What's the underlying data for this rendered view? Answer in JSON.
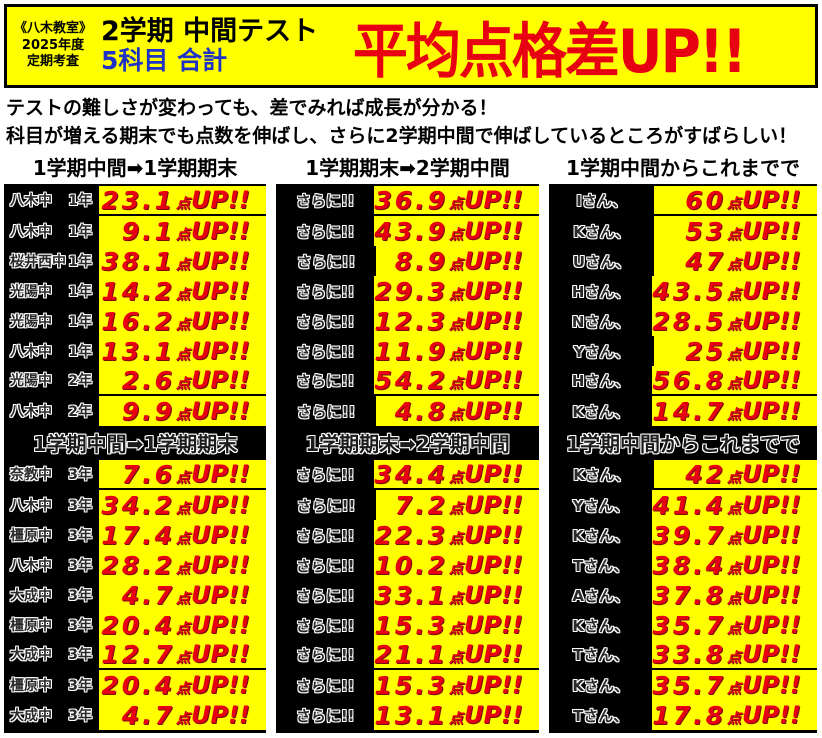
{
  "colors": {
    "background": "#ffffff",
    "highlight_yellow": "#ffff00",
    "accent_red": "#e60012",
    "accent_blue": "#1e32c8",
    "label_bg": "#000000"
  },
  "header": {
    "tag_line1": "《八木教室》",
    "tag_line2": "2025年度",
    "tag_line3": "定期考査",
    "test_name": "2学期 中間テスト",
    "subjects": "5科目 合計",
    "title": "平均点格差UP!!"
  },
  "intro_lines": [
    "テストの難しさが変わっても、差でみれば成長が分かる！",
    "科目が増える期末でも点数を伸ばし、さらに2学期中間で伸ばしているところがすばらしい！"
  ],
  "column_headers": [
    "1学期中間➡1学期期末",
    "1学期期末➡2学期中間",
    "1学期中間からこれまでで"
  ],
  "further_label": "さらに!!",
  "unit": "点",
  "up_suffix": "UP!!",
  "sections": [
    {
      "rows": [
        {
          "school": "八木中",
          "grade": "1年",
          "student": "Iさん、",
          "gains": [
            "23.1",
            "36.9",
            "60"
          ]
        },
        {
          "school": "八木中",
          "grade": "1年",
          "student": "Kさん、",
          "gains": [
            "9.1",
            "43.9",
            "53"
          ]
        },
        {
          "school": "桜井西中",
          "grade": "1年",
          "student": "Uさん、",
          "gains": [
            "38.1",
            "8.9",
            "47"
          ]
        },
        {
          "school": "光陽中",
          "grade": "1年",
          "student": "Hさん、",
          "gains": [
            "14.2",
            "29.3",
            "43.5"
          ]
        },
        {
          "school": "光陽中",
          "grade": "1年",
          "student": "Nさん、",
          "gains": [
            "16.2",
            "12.3",
            "28.5"
          ]
        },
        {
          "school": "八木中",
          "grade": "1年",
          "student": "Yさん、",
          "gains": [
            "13.1",
            "11.9",
            "25"
          ]
        },
        {
          "school": "光陽中",
          "grade": "2年",
          "student": "Hさん、",
          "gains": [
            "2.6",
            "54.2",
            "56.8"
          ]
        },
        {
          "school": "八木中",
          "grade": "2年",
          "student": "Kさん、",
          "gains": [
            "9.9",
            "4.8",
            "14.7"
          ]
        }
      ]
    },
    {
      "rows": [
        {
          "school": "奈教中",
          "grade": "3年",
          "student": "Kさん、",
          "gains": [
            "7.6",
            "34.4",
            "42"
          ]
        },
        {
          "school": "八木中",
          "grade": "3年",
          "student": "Yさん、",
          "gains": [
            "34.2",
            "7.2",
            "41.4"
          ]
        },
        {
          "school": "橿原中",
          "grade": "3年",
          "student": "Kさん、",
          "gains": [
            "17.4",
            "22.3",
            "39.7"
          ]
        },
        {
          "school": "八木中",
          "grade": "3年",
          "student": "Tさん、",
          "gains": [
            "28.2",
            "10.2",
            "38.4"
          ]
        },
        {
          "school": "大成中",
          "grade": "3年",
          "student": "Aさん、",
          "gains": [
            "4.7",
            "33.1",
            "37.8"
          ]
        },
        {
          "school": "橿原中",
          "grade": "3年",
          "student": "Kさん、",
          "gains": [
            "20.4",
            "15.3",
            "35.7"
          ]
        },
        {
          "school": "大成中",
          "grade": "3年",
          "student": "Tさん、",
          "gains": [
            "12.7",
            "21.1",
            "33.8"
          ]
        },
        {
          "school": "橿原中",
          "grade": "3年",
          "student": "Kさん、",
          "gains": [
            "20.4",
            "15.3",
            "35.7"
          ]
        },
        {
          "school": "大成中",
          "grade": "3年",
          "student": "Tさん、",
          "gains": [
            "4.7",
            "13.1",
            "17.8"
          ]
        }
      ]
    }
  ]
}
